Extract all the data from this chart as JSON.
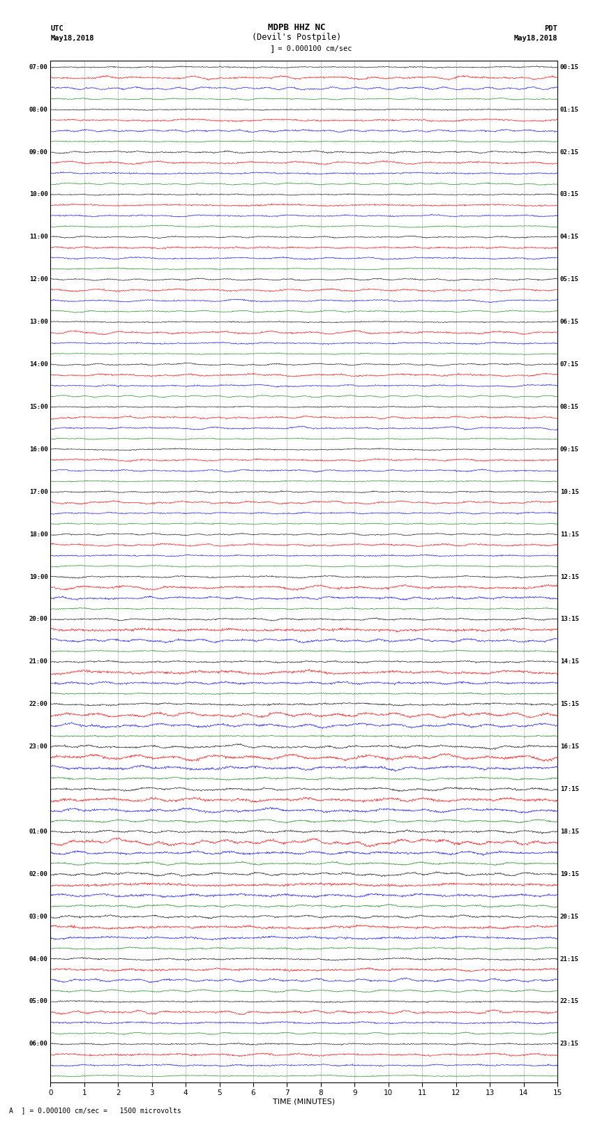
{
  "title_line1": "MDPB HHZ NC",
  "title_line2": "(Devil's Postpile)",
  "scale_label": "= 0.000100 cm/sec",
  "footer_label": "A  ] = 0.000100 cm/sec =   1500 microvolts",
  "xlabel": "TIME (MINUTES)",
  "x_min": 0,
  "x_max": 15,
  "colors": [
    "black",
    "red",
    "blue",
    "green"
  ],
  "n_rows": 96,
  "fig_width": 8.5,
  "fig_height": 16.13,
  "bg_color": "white",
  "left_times": [
    "07:00",
    "",
    "",
    "",
    "08:00",
    "",
    "",
    "",
    "09:00",
    "",
    "",
    "",
    "10:00",
    "",
    "",
    "",
    "11:00",
    "",
    "",
    "",
    "12:00",
    "",
    "",
    "",
    "13:00",
    "",
    "",
    "",
    "14:00",
    "",
    "",
    "",
    "15:00",
    "",
    "",
    "",
    "16:00",
    "",
    "",
    "",
    "17:00",
    "",
    "",
    "",
    "18:00",
    "",
    "",
    "",
    "19:00",
    "",
    "",
    "",
    "20:00",
    "",
    "",
    "",
    "21:00",
    "",
    "",
    "",
    "22:00",
    "",
    "",
    "",
    "23:00",
    "",
    "",
    "",
    "",
    "",
    "",
    "",
    "01:00",
    "",
    "",
    "",
    "02:00",
    "",
    "",
    "",
    "03:00",
    "",
    "",
    "",
    "04:00",
    "",
    "",
    "",
    "05:00",
    "",
    "",
    "",
    "06:00",
    "",
    "",
    ""
  ],
  "left_times_special": [
    64
  ],
  "right_times": [
    "00:15",
    "",
    "",
    "",
    "01:15",
    "",
    "",
    "",
    "02:15",
    "",
    "",
    "",
    "03:15",
    "",
    "",
    "",
    "04:15",
    "",
    "",
    "",
    "05:15",
    "",
    "",
    "",
    "06:15",
    "",
    "",
    "",
    "07:15",
    "",
    "",
    "",
    "08:15",
    "",
    "",
    "",
    "09:15",
    "",
    "",
    "",
    "10:15",
    "",
    "",
    "",
    "11:15",
    "",
    "",
    "",
    "12:15",
    "",
    "",
    "",
    "13:15",
    "",
    "",
    "",
    "14:15",
    "",
    "",
    "",
    "15:15",
    "",
    "",
    "",
    "16:15",
    "",
    "",
    "",
    "17:15",
    "",
    "",
    "",
    "18:15",
    "",
    "",
    "",
    "19:15",
    "",
    "",
    "",
    "20:15",
    "",
    "",
    "",
    "21:15",
    "",
    "",
    "",
    "22:15",
    "",
    "",
    "",
    "23:15",
    "",
    "",
    ""
  ],
  "noise_base": 0.06,
  "noise_scale_per_row": [
    0.06,
    0.1,
    0.08,
    0.05,
    0.06,
    0.09,
    0.08,
    0.05,
    0.07,
    0.09,
    0.08,
    0.05,
    0.06,
    0.09,
    0.07,
    0.05,
    0.06,
    0.09,
    0.07,
    0.05,
    0.06,
    0.09,
    0.07,
    0.05,
    0.06,
    0.09,
    0.07,
    0.05,
    0.06,
    0.09,
    0.07,
    0.05,
    0.06,
    0.09,
    0.07,
    0.05,
    0.06,
    0.09,
    0.07,
    0.05,
    0.06,
    0.09,
    0.07,
    0.05,
    0.06,
    0.09,
    0.07,
    0.05,
    0.07,
    0.12,
    0.1,
    0.06,
    0.08,
    0.14,
    0.11,
    0.06,
    0.08,
    0.14,
    0.11,
    0.06,
    0.09,
    0.14,
    0.12,
    0.07,
    0.1,
    0.15,
    0.13,
    0.08,
    0.1,
    0.15,
    0.13,
    0.08,
    0.1,
    0.15,
    0.12,
    0.08,
    0.1,
    0.14,
    0.12,
    0.08,
    0.09,
    0.13,
    0.11,
    0.07,
    0.08,
    0.12,
    0.1,
    0.06,
    0.07,
    0.11,
    0.09,
    0.06,
    0.07,
    0.1,
    0.08,
    0.05
  ]
}
